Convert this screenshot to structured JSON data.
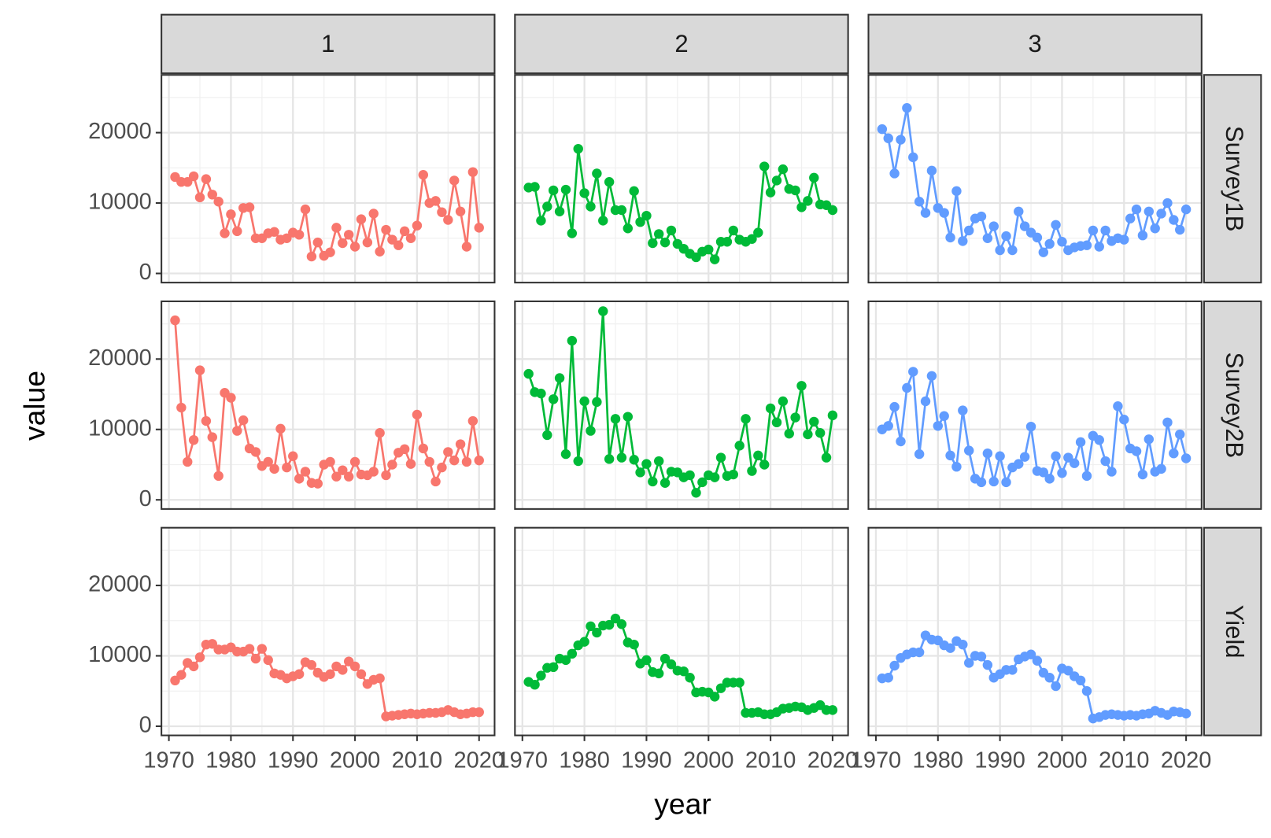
{
  "chart_data": {
    "type": "line",
    "x_label": "year",
    "y_label": "value",
    "facet_columns": [
      "1",
      "2",
      "3"
    ],
    "facet_rows": [
      "Survey1B",
      "Survey2B",
      "Yield"
    ],
    "colors": [
      "#f8766d",
      "#00ba38",
      "#619cff"
    ],
    "x": [
      1971,
      1972,
      1973,
      1974,
      1975,
      1976,
      1977,
      1978,
      1979,
      1980,
      1981,
      1982,
      1983,
      1984,
      1985,
      1986,
      1987,
      1988,
      1989,
      1990,
      1991,
      1992,
      1993,
      1994,
      1995,
      1996,
      1997,
      1998,
      1999,
      2000,
      2001,
      2002,
      2003,
      2004,
      2005,
      2006,
      2007,
      2008,
      2009,
      2010,
      2011,
      2012,
      2013,
      2014,
      2015,
      2016,
      2017,
      2018,
      2019,
      2020
    ],
    "panels": [
      [
        [
          13700,
          13000,
          13000,
          13800,
          10800,
          13400,
          11200,
          10200,
          5700,
          8400,
          6000,
          9300,
          9400,
          5000,
          5000,
          5700,
          5900,
          4800,
          5000,
          5800,
          5500,
          9100,
          2400,
          4400,
          2500,
          3000,
          6500,
          4300,
          5500,
          3800,
          7700,
          4400,
          8500,
          3100,
          6200,
          4800,
          4000,
          6000,
          5000,
          6800,
          14000,
          10000,
          10300,
          8700,
          7600,
          13200,
          8800,
          3800,
          14400,
          6500
        ],
        [
          12200,
          12300,
          7500,
          9500,
          11800,
          8800,
          11900,
          5700,
          17700,
          11400,
          9500,
          14200,
          7500,
          13000,
          9000,
          9000,
          6400,
          11700,
          7300,
          8200,
          4300,
          5600,
          4400,
          6100,
          4200,
          3500,
          2800,
          2300,
          3100,
          3400,
          2000,
          4500,
          4500,
          6100,
          4800,
          4500,
          4900,
          5800,
          15200,
          11500,
          13200,
          14800,
          12000,
          11800,
          9400,
          10300,
          13600,
          9800,
          9700,
          9000
        ],
        [
          20500,
          19200,
          14200,
          19000,
          23500,
          16500,
          10200,
          8600,
          14600,
          9300,
          8600,
          5100,
          11700,
          4600,
          6100,
          7800,
          8100,
          5000,
          6700,
          3300,
          5300,
          3300,
          8800,
          6700,
          5800,
          5100,
          3000,
          4200,
          6900,
          4500,
          3300,
          3700,
          3900,
          4000,
          6100,
          3800,
          6100,
          4600,
          5000,
          4800,
          7800,
          9100,
          5400,
          8800,
          6400,
          8500,
          10000,
          7600,
          6200,
          9100
        ]
      ],
      [
        [
          25500,
          13100,
          5400,
          8500,
          18400,
          11200,
          8900,
          3400,
          15200,
          14500,
          9800,
          11300,
          7300,
          6800,
          4800,
          5400,
          4400,
          10100,
          4600,
          6200,
          3000,
          4000,
          2400,
          2300,
          5000,
          5400,
          3300,
          4200,
          3300,
          5400,
          3600,
          3500,
          4000,
          9500,
          3500,
          5000,
          6700,
          7200,
          5100,
          12100,
          7300,
          5400,
          2600,
          4600,
          6800,
          5600,
          7900,
          5400,
          11200,
          5600
        ],
        [
          17900,
          15300,
          15100,
          9200,
          14300,
          17300,
          6500,
          22600,
          5500,
          14000,
          9800,
          13900,
          26800,
          5800,
          11500,
          6000,
          11800,
          5700,
          3900,
          5100,
          2600,
          5500,
          2400,
          4000,
          3900,
          3200,
          3500,
          1000,
          2500,
          3500,
          3200,
          6000,
          3400,
          3600,
          7700,
          11500,
          4100,
          6300,
          5000,
          13000,
          11000,
          14000,
          9400,
          11700,
          16200,
          9300,
          11100,
          9500,
          6000,
          12000
        ],
        [
          10000,
          10500,
          13200,
          8300,
          15900,
          18200,
          6500,
          14000,
          17600,
          10500,
          11900,
          6300,
          4700,
          12700,
          7000,
          3000,
          2500,
          6600,
          2600,
          6200,
          2500,
          4600,
          5100,
          6100,
          10400,
          4100,
          3900,
          3000,
          6200,
          3800,
          6000,
          5200,
          8200,
          3400,
          9100,
          8500,
          5500,
          4000,
          13300,
          11400,
          7300,
          6900,
          3600,
          8600,
          4000,
          4400,
          11000,
          6600,
          9300,
          5900
        ]
      ],
      [
        [
          6500,
          7300,
          9000,
          8500,
          9800,
          11600,
          11700,
          10900,
          10900,
          11200,
          10600,
          10600,
          11000,
          9600,
          11000,
          9400,
          7500,
          7300,
          6800,
          7100,
          7400,
          9100,
          8700,
          7600,
          7000,
          7400,
          8500,
          8000,
          9200,
          8500,
          7400,
          6000,
          6600,
          6800,
          1400,
          1500,
          1600,
          1700,
          1800,
          1700,
          1800,
          1900,
          1900,
          2000,
          2300,
          2000,
          1700,
          1800,
          2000,
          2000
        ],
        [
          6300,
          5900,
          7200,
          8300,
          8400,
          9600,
          9400,
          10300,
          11500,
          12000,
          14200,
          13300,
          14300,
          14400,
          15300,
          14500,
          11900,
          11600,
          8900,
          9400,
          7700,
          7500,
          9600,
          8800,
          7900,
          7800,
          6900,
          4800,
          4900,
          4800,
          4200,
          5400,
          6200,
          6200,
          6200,
          1900,
          1900,
          2000,
          1700,
          1700,
          2000,
          2500,
          2600,
          2800,
          2700,
          2300,
          2600,
          3000,
          2300,
          2300
        ],
        [
          6800,
          6900,
          8600,
          9700,
          10200,
          10500,
          10500,
          12900,
          12300,
          12200,
          11500,
          11100,
          12100,
          11600,
          9000,
          10000,
          9900,
          8700,
          6900,
          7400,
          8000,
          8000,
          9500,
          9900,
          10200,
          9300,
          7600,
          6900,
          5700,
          8200,
          7900,
          7100,
          6500,
          5000,
          1100,
          1300,
          1600,
          1700,
          1600,
          1500,
          1600,
          1500,
          1700,
          1800,
          2200,
          1900,
          1600,
          2100,
          2000,
          1800
        ]
      ]
    ],
    "xlim": [
      1968.8,
      2022.5
    ],
    "ylim": [
      -1300,
      28200
    ],
    "xticks": [
      1970,
      1980,
      1990,
      2000,
      2010,
      2020
    ],
    "yticks": [
      0,
      10000,
      20000
    ],
    "xminor": [
      1975,
      1985,
      1995,
      2005,
      2015
    ],
    "yminor": [
      5000,
      15000,
      25000
    ],
    "grid": true
  }
}
